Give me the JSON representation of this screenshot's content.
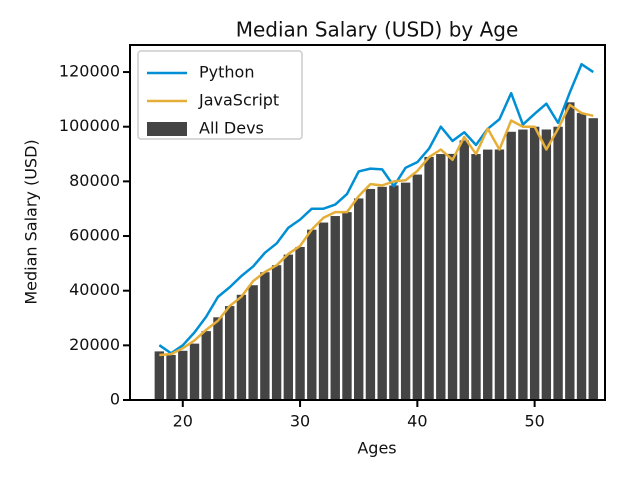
{
  "chart_data": {
    "type": "bar",
    "title": "Median Salary (USD) by Age",
    "xlabel": "Ages",
    "ylabel": "Median Salary (USD)",
    "x": [
      18,
      19,
      20,
      21,
      22,
      23,
      24,
      25,
      26,
      27,
      28,
      29,
      30,
      31,
      32,
      33,
      34,
      35,
      36,
      37,
      38,
      39,
      40,
      41,
      42,
      43,
      44,
      45,
      46,
      47,
      48,
      49,
      50,
      51,
      52,
      53,
      54,
      55
    ],
    "series": [
      {
        "name": "Python",
        "type": "line",
        "color": "#008fd5",
        "values": [
          20046,
          17100,
          20000,
          24744,
          30500,
          37732,
          41247,
          45372,
          48876,
          53850,
          57287,
          63016,
          65998,
          70003,
          70000,
          71496,
          75370,
          83640,
          84666,
          84392,
          78254,
          85000,
          87038,
          91991,
          100000,
          94796,
          97962,
          93302,
          99240,
          102736,
          112285,
          100771,
          104708,
          108423,
          101407,
          112542,
          122870,
          120000
        ]
      },
      {
        "name": "JavaScript",
        "type": "line",
        "color": "#e5ae38",
        "values": [
          16446,
          16791,
          18942,
          21780,
          25704,
          29000,
          34372,
          37810,
          43515,
          46823,
          49293,
          53437,
          56373,
          62375,
          66674,
          68745,
          68746,
          74583,
          79000,
          78508,
          79996,
          80403,
          83820,
          88833,
          91660,
          87892,
          96243,
          90000,
          99313,
          91660,
          102264,
          100000,
          100000,
          91660,
          99240,
          108000,
          105000,
          104000
        ]
      },
      {
        "name": "All Devs",
        "type": "bar",
        "color": "#444444",
        "values": [
          17784,
          16500,
          18012,
          20628,
          25206,
          30252,
          34368,
          38496,
          42000,
          46752,
          49320,
          53200,
          56000,
          62316,
          64928,
          67317,
          68748,
          73752,
          77232,
          78000,
          78508,
          79536,
          82488,
          88935,
          90000,
          90056,
          95000,
          90000,
          91633,
          91660,
          98150,
          98964,
          100000,
          98988,
          100000,
          108923,
          105000,
          103117
        ]
      }
    ],
    "xlim": [
      15.5,
      56
    ],
    "ylim": [
      0,
      129900
    ],
    "xticks": [
      20,
      30,
      40,
      50
    ],
    "yticks": [
      0,
      20000,
      40000,
      60000,
      80000,
      100000,
      120000
    ],
    "legend": "upper left"
  }
}
